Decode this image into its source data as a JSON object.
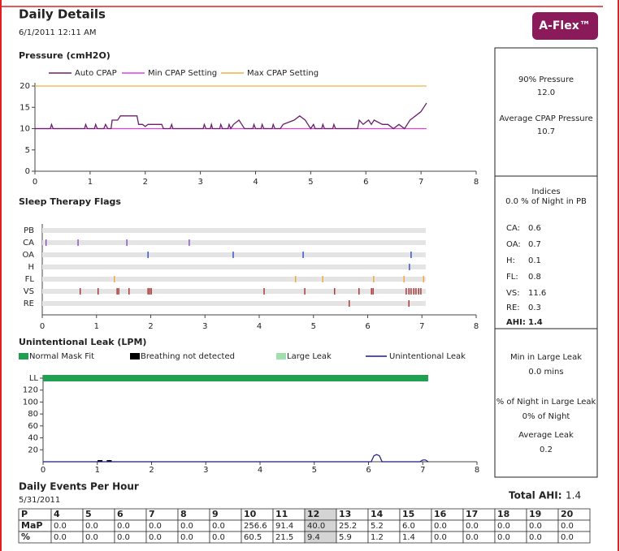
{
  "header": {
    "title": "Daily Details",
    "datetime": "6/1/2011 12:11 AM",
    "badge": "A-Flex™"
  },
  "pressure_chart": {
    "type": "line",
    "title": "Pressure (cmH2O)",
    "xlim": [
      0,
      8
    ],
    "xticks": [
      0,
      1,
      2,
      3,
      4,
      5,
      6,
      7,
      8
    ],
    "ylim": [
      0,
      20
    ],
    "yticks": [
      0,
      5,
      10,
      15,
      20
    ],
    "series": [
      {
        "name": "Auto CPAP",
        "color": "#6b1f6b",
        "x": [
          0,
          0.28,
          0.3,
          0.33,
          0.9,
          0.92,
          0.95,
          1.08,
          1.1,
          1.13,
          1.25,
          1.28,
          1.32,
          1.38,
          1.4,
          1.5,
          1.55,
          1.85,
          1.88,
          1.95,
          2.0,
          2.05,
          2.3,
          2.33,
          2.45,
          2.48,
          2.5,
          3.05,
          3.07,
          3.1,
          3.18,
          3.2,
          3.22,
          3.35,
          3.37,
          3.4,
          3.5,
          3.52,
          3.55,
          3.6,
          3.7,
          3.75,
          3.8,
          3.95,
          3.97,
          4.0,
          4.1,
          4.12,
          4.15,
          4.3,
          4.32,
          4.35,
          4.45,
          4.5,
          4.6,
          4.7,
          4.8,
          4.9,
          4.95,
          5.0,
          5.05,
          5.08,
          5.2,
          5.22,
          5.25,
          5.4,
          5.42,
          5.45,
          5.85,
          5.88,
          5.95,
          6.05,
          6.1,
          6.15,
          6.3,
          6.4,
          6.5,
          6.6,
          6.7,
          6.75,
          6.8,
          6.9,
          7.0,
          7.05,
          7.1
        ],
        "values": [
          10,
          10,
          11,
          10,
          10,
          11,
          10,
          10,
          11,
          10,
          10,
          11,
          10,
          10,
          12,
          12,
          13,
          13,
          11,
          11,
          10.5,
          11,
          11,
          10,
          10,
          11,
          10,
          10,
          11,
          10,
          10,
          11,
          10,
          10,
          11,
          10,
          10,
          11,
          10,
          11,
          12,
          11,
          10,
          10,
          11,
          10,
          10,
          11,
          10,
          10,
          11,
          10,
          10,
          11,
          11.5,
          12,
          13,
          12,
          11,
          10,
          11,
          10,
          10,
          11,
          10,
          10,
          11,
          10,
          10,
          12,
          11,
          12,
          11,
          12,
          11,
          11,
          10,
          11,
          10,
          11,
          12,
          13,
          14,
          15,
          16
        ]
      },
      {
        "name": "Min CPAP Setting",
        "color": "#e040e0",
        "x": [
          0,
          7.1
        ],
        "values": [
          10,
          10
        ]
      },
      {
        "name": "Max CPAP Setting",
        "color": "#f0b040",
        "x": [
          0,
          7.1
        ],
        "values": [
          20,
          20
        ]
      }
    ]
  },
  "flags_chart": {
    "type": "events",
    "title": "Sleep Therapy Flags",
    "xlim": [
      0,
      8
    ],
    "xticks": [
      0,
      1,
      2,
      3,
      4,
      5,
      6,
      7,
      8
    ],
    "rows": [
      {
        "name": "PB",
        "color": "#6b1f6b",
        "x": []
      },
      {
        "name": "CA",
        "color": "#8040c0",
        "x": [
          0.07,
          0.66,
          1.56,
          2.71
        ]
      },
      {
        "name": "OA",
        "color": "#2040c0",
        "x": [
          1.95,
          3.52,
          4.81,
          6.8
        ]
      },
      {
        "name": "H",
        "color": "#2040c0",
        "x": [
          6.77
        ]
      },
      {
        "name": "FL",
        "color": "#f0a030",
        "x": [
          1.33,
          4.67,
          5.17,
          6.11,
          6.67,
          7.03
        ]
      },
      {
        "name": "VS",
        "color": "#a02020",
        "x": [
          0.7,
          1.03,
          1.38,
          1.41,
          1.6,
          1.95,
          1.98,
          2.01,
          4.09,
          4.84,
          5.39,
          5.84,
          6.07,
          6.1,
          6.71,
          6.76,
          6.8,
          6.85,
          6.89,
          6.94,
          6.98
        ]
      },
      {
        "name": "RE",
        "color": "#a02020",
        "x": [
          5.66,
          6.76
        ]
      }
    ]
  },
  "leak_chart": {
    "type": "line",
    "title": "Unintentional Leak (LPM)",
    "xlim": [
      0,
      8
    ],
    "xticks": [
      0,
      1,
      2,
      3,
      4,
      5,
      6,
      7,
      8
    ],
    "ylim": [
      0,
      140
    ],
    "yticks": [
      20,
      40,
      60,
      80,
      100,
      120,
      {
        "value": 140,
        "label": "LL"
      }
    ],
    "series": [
      {
        "name": "Normal Mask Fit",
        "color": "#20a050",
        "x": [
          0,
          7.1
        ]
      },
      {
        "name": "Breathing not detected",
        "color": "#000000",
        "x": [
          1.05,
          1.22
        ]
      },
      {
        "name": "Large Leak",
        "color": "#a0e0b0",
        "x": []
      },
      {
        "name": "Unintentional Leak",
        "color": "#1a1a80",
        "x": [
          0,
          6.05,
          6.1,
          6.15,
          6.2,
          6.25,
          6.95,
          7.0,
          7.05,
          7.1
        ],
        "values": [
          0,
          0,
          10,
          12,
          10,
          0,
          0,
          3,
          3,
          0
        ]
      }
    ]
  },
  "pressure_stats": [
    {
      "label": "90% Pressure",
      "value": "12.0"
    },
    {
      "label": "Average CPAP Pressure",
      "value": "10.7"
    }
  ],
  "indices": {
    "title": "Indices",
    "pb": "0.0 % of Night in PB",
    "items": [
      {
        "label": "CA:",
        "value": "0.6"
      },
      {
        "label": "OA:",
        "value": "0.7"
      },
      {
        "label": "H:",
        "value": "0.1"
      },
      {
        "label": "FL:",
        "value": "0.8"
      },
      {
        "label": "VS:",
        "value": "11.6"
      },
      {
        "label": "RE:",
        "value": "0.3"
      },
      {
        "label": "AHI:",
        "value": "1.4"
      }
    ]
  },
  "leak_stats": [
    {
      "label": "Min in Large Leak",
      "value": "0.0 mins"
    },
    {
      "label": "% of Night in Large Leak",
      "value": "0% of Night"
    },
    {
      "label": "Average Leak",
      "value": "0.2"
    }
  ],
  "events": {
    "title": "Daily Events Per Hour",
    "date": "5/31/2011",
    "total_label": "Total AHI:",
    "total_value": "1.4",
    "table": {
      "header": [
        "P",
        "4",
        "5",
        "6",
        "7",
        "8",
        "9",
        "10",
        "11",
        "12",
        "13",
        "14",
        "15",
        "16",
        "17",
        "18",
        "19",
        "20"
      ],
      "rows": [
        [
          "MaP",
          "0.0",
          "0.0",
          "0.0",
          "0.0",
          "0.0",
          "0.0",
          "256.6",
          "91.4",
          "40.0",
          "25.2",
          "5.2",
          "6.0",
          "0.0",
          "0.0",
          "0.0",
          "0.0",
          "0.0"
        ],
        [
          "%",
          "0.0",
          "0.0",
          "0.0",
          "0.0",
          "0.0",
          "0.0",
          "60.5",
          "21.5",
          "9.4",
          "5.9",
          "1.2",
          "1.4",
          "0.0",
          "0.0",
          "0.0",
          "0.0",
          "0.0"
        ]
      ]
    }
  }
}
